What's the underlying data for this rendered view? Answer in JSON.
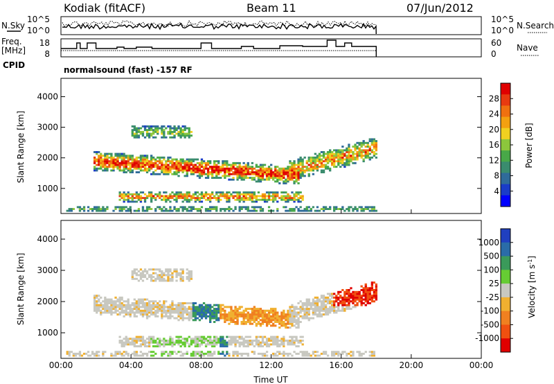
{
  "header": {
    "station": "Kodiak (fitACF)",
    "beam": "Beam 11",
    "date": "07/Jun/2012"
  },
  "params": {
    "nsky_label": "N.Sky",
    "freq_label_1": "Freq.",
    "freq_label_2": "[MHz]",
    "cpid_label": "CPID",
    "nsearch_label": "N.Search",
    "nave_label": "Nave",
    "nsky_ticks": [
      "10^5",
      "10^0"
    ],
    "nsearch_ticks": [
      "10^5",
      "10^0"
    ],
    "freq_ticks": [
      "18",
      "8"
    ],
    "nave_ticks": [
      "60",
      "0"
    ],
    "cpid_text": "normalsound (fast) -157 RF"
  },
  "chart_data": [
    {
      "type": "heatmap",
      "name": "power",
      "ylabel": "Slant Range [km]",
      "xlabel": "",
      "ylim": [
        180,
        4600
      ],
      "yticks": [
        "1000",
        "2000",
        "3000",
        "4000"
      ],
      "colorbar_label": "Power [dB]",
      "colorbar_ticks": [
        "4",
        "8",
        "12",
        "16",
        "20",
        "24",
        "28"
      ],
      "colorbar_colors": [
        "#0000ff",
        "#1a3cc8",
        "#2f6b9a",
        "#3a8c6e",
        "#48a848",
        "#8cc63c",
        "#f0d020",
        "#f4a010",
        "#f07010",
        "#e83a10",
        "#e00000"
      ],
      "data_extent_ut_hours": [
        0.0,
        18.0
      ]
    },
    {
      "type": "heatmap",
      "name": "velocity",
      "ylabel": "Slant Range [km]",
      "xlabel": "Time UT",
      "ylim": [
        180,
        4600
      ],
      "yticks": [
        "1000",
        "2000",
        "3000",
        "4000"
      ],
      "xticks": [
        "00:00",
        "04:00",
        "08:00",
        "12:00",
        "16:00",
        "20:00",
        "00:00"
      ],
      "colorbar_label": "Velocity [m s",
      "colorbar_label_sup": "-1",
      "colorbar_label_end": "]",
      "colorbar_ticks": [
        "1000",
        "500",
        "100",
        "25",
        "-25",
        "-100",
        "-500",
        "-1000"
      ],
      "colorbar_colors": [
        "#2040c0",
        "#2a6ca8",
        "#3a9a5a",
        "#66cc33",
        "#c8c8c0",
        "#f0b030",
        "#f08020",
        "#f05010",
        "#e00000"
      ],
      "data_extent_ut_hours": [
        0.0,
        18.0
      ]
    }
  ]
}
